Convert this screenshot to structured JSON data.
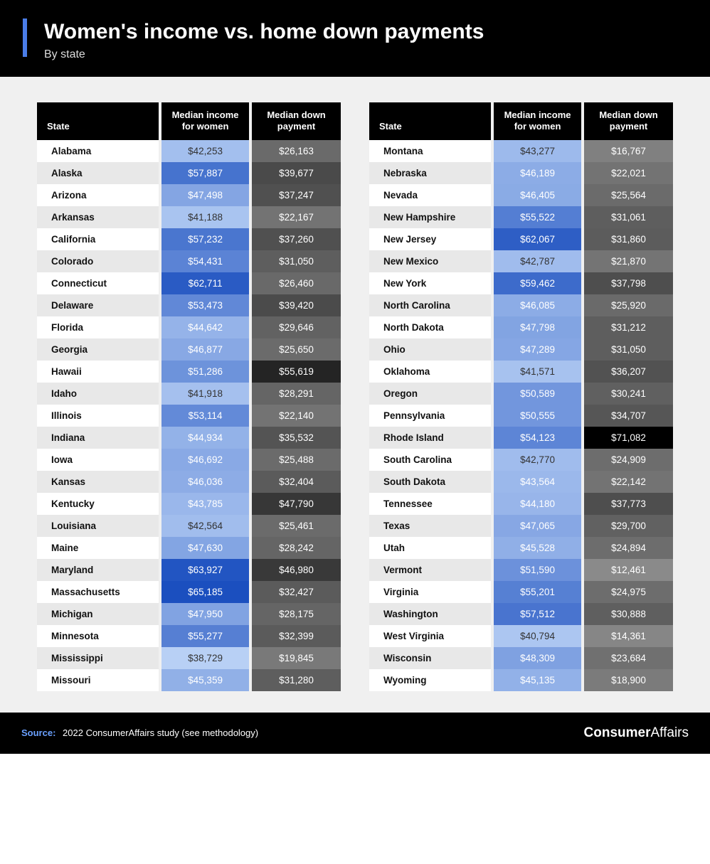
{
  "header": {
    "title": "Women's income vs. home down payments",
    "subtitle": "By state",
    "accent_color": "#4a7de8"
  },
  "columns": {
    "state": "State",
    "income": "Median income for women",
    "payment": "Median down payment"
  },
  "income_scale": {
    "min": 38729,
    "max": 65185,
    "light": "#b8d0f5",
    "dark": "#1b4fbf"
  },
  "payment_scale": {
    "min": 12461,
    "max": 71082,
    "light": "#8a8a8a",
    "dark": "#000000"
  },
  "rows_left": [
    {
      "state": "Alabama",
      "income": 42253,
      "payment": 26163
    },
    {
      "state": "Alaska",
      "income": 57887,
      "payment": 39677
    },
    {
      "state": "Arizona",
      "income": 47498,
      "payment": 37247
    },
    {
      "state": "Arkansas",
      "income": 41188,
      "payment": 22167
    },
    {
      "state": "California",
      "income": 57232,
      "payment": 37260
    },
    {
      "state": "Colorado",
      "income": 54431,
      "payment": 31050
    },
    {
      "state": "Connecticut",
      "income": 62711,
      "payment": 26460
    },
    {
      "state": "Delaware",
      "income": 53473,
      "payment": 39420
    },
    {
      "state": "Florida",
      "income": 44642,
      "payment": 29646
    },
    {
      "state": "Georgia",
      "income": 46877,
      "payment": 25650
    },
    {
      "state": "Hawaii",
      "income": 51286,
      "payment": 55619
    },
    {
      "state": "Idaho",
      "income": 41918,
      "payment": 28291
    },
    {
      "state": "Illinois",
      "income": 53114,
      "payment": 22140
    },
    {
      "state": "Indiana",
      "income": 44934,
      "payment": 35532
    },
    {
      "state": "Iowa",
      "income": 46692,
      "payment": 25488
    },
    {
      "state": "Kansas",
      "income": 46036,
      "payment": 32404
    },
    {
      "state": "Kentucky",
      "income": 43785,
      "payment": 47790
    },
    {
      "state": "Louisiana",
      "income": 42564,
      "payment": 25461
    },
    {
      "state": "Maine",
      "income": 47630,
      "payment": 28242
    },
    {
      "state": "Maryland",
      "income": 63927,
      "payment": 46980
    },
    {
      "state": "Massachusetts",
      "income": 65185,
      "payment": 32427
    },
    {
      "state": "Michigan",
      "income": 47950,
      "payment": 28175
    },
    {
      "state": "Minnesota",
      "income": 55277,
      "payment": 32399
    },
    {
      "state": "Mississippi",
      "income": 38729,
      "payment": 19845
    },
    {
      "state": "Missouri",
      "income": 45359,
      "payment": 31280
    }
  ],
  "rows_right": [
    {
      "state": "Montana",
      "income": 43277,
      "payment": 16767
    },
    {
      "state": "Nebraska",
      "income": 46189,
      "payment": 22021
    },
    {
      "state": "Nevada",
      "income": 46405,
      "payment": 25564
    },
    {
      "state": "New Hampshire",
      "income": 55522,
      "payment": 31061
    },
    {
      "state": "New Jersey",
      "income": 62067,
      "payment": 31860
    },
    {
      "state": "New Mexico",
      "income": 42787,
      "payment": 21870
    },
    {
      "state": "New York",
      "income": 59462,
      "payment": 37798
    },
    {
      "state": "North Carolina",
      "income": 46085,
      "payment": 25920
    },
    {
      "state": "North Dakota",
      "income": 47798,
      "payment": 31212
    },
    {
      "state": "Ohio",
      "income": 47289,
      "payment": 31050
    },
    {
      "state": "Oklahoma",
      "income": 41571,
      "payment": 36207
    },
    {
      "state": "Oregon",
      "income": 50589,
      "payment": 30241
    },
    {
      "state": "Pennsylvania",
      "income": 50555,
      "payment": 34707
    },
    {
      "state": "Rhode Island",
      "income": 54123,
      "payment": 71082
    },
    {
      "state": "South Carolina",
      "income": 42770,
      "payment": 24909
    },
    {
      "state": "South Dakota",
      "income": 43564,
      "payment": 22142
    },
    {
      "state": "Tennessee",
      "income": 44180,
      "payment": 37773
    },
    {
      "state": "Texas",
      "income": 47065,
      "payment": 29700
    },
    {
      "state": "Utah",
      "income": 45528,
      "payment": 24894
    },
    {
      "state": "Vermont",
      "income": 51590,
      "payment": 12461
    },
    {
      "state": "Virginia",
      "income": 55201,
      "payment": 24975
    },
    {
      "state": "Washington",
      "income": 57512,
      "payment": 30888
    },
    {
      "state": "West Virginia",
      "income": 40794,
      "payment": 14361
    },
    {
      "state": "Wisconsin",
      "income": 48309,
      "payment": 23684
    },
    {
      "state": "Wyoming",
      "income": 45135,
      "payment": 18900
    }
  ],
  "footer": {
    "source_label": "Source:",
    "source_text": "2022 ConsumerAffairs study (see methodology)",
    "brand_bold": "Consumer",
    "brand_light": "Affairs"
  }
}
